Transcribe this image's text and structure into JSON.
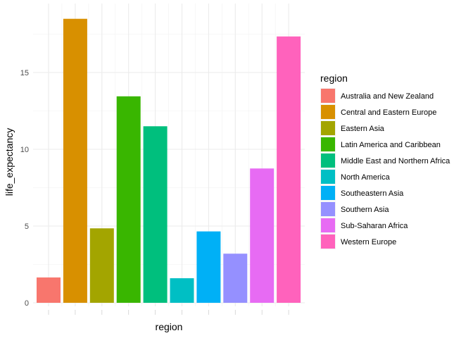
{
  "chart_data": {
    "type": "bar",
    "xlabel": "region",
    "ylabel": "life_expectancy",
    "ylim": [
      0,
      19
    ],
    "yticks": [
      0,
      5,
      10,
      15
    ],
    "grid": true,
    "legend": {
      "title": "region",
      "position": "right"
    },
    "categories": [
      "Australia and New Zealand",
      "Central and Eastern Europe",
      "Eastern Asia",
      "Latin America and Caribbean",
      "Middle East and Northern Africa",
      "North America",
      "Southeastern Asia",
      "Southern Asia",
      "Sub-Saharan Africa",
      "Western Europe"
    ],
    "values": [
      1.65,
      18.5,
      4.85,
      13.45,
      11.5,
      1.6,
      4.65,
      3.2,
      8.75,
      17.35
    ],
    "colors": [
      "#F8766D",
      "#D89000",
      "#A3A500",
      "#39B600",
      "#00BF7D",
      "#00BFC4",
      "#00B0F6",
      "#9590FF",
      "#E76BF3",
      "#FF62BC"
    ]
  }
}
